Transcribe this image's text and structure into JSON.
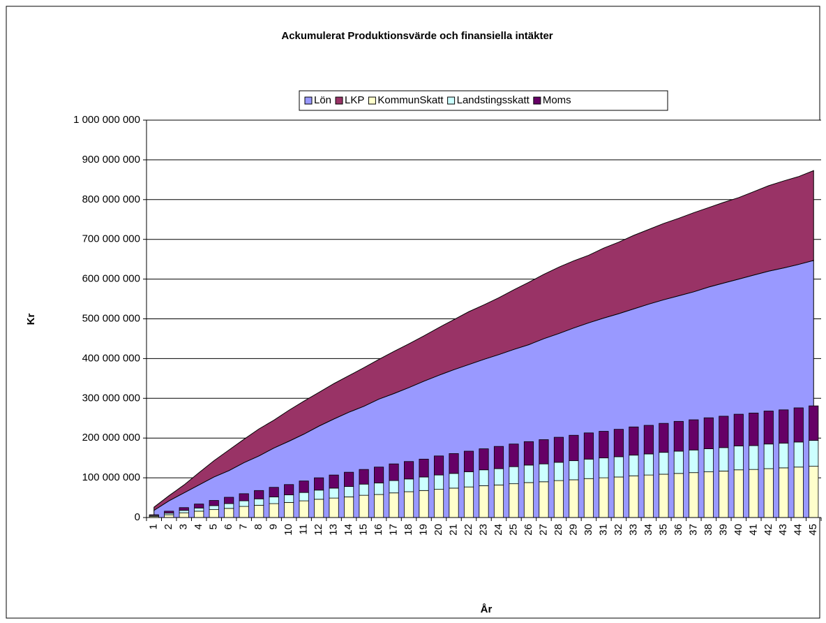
{
  "chart_data": {
    "type": "combo",
    "title": "Ackumulerat Produktionsvärde och finansiella intäkter",
    "y_label": "Kr",
    "x_label": "År",
    "categories": [
      "1",
      "2",
      "3",
      "4",
      "5",
      "6",
      "7",
      "8",
      "9",
      "10",
      "11",
      "12",
      "13",
      "14",
      "15",
      "16",
      "17",
      "18",
      "19",
      "20",
      "21",
      "22",
      "23",
      "24",
      "25",
      "26",
      "27",
      "28",
      "29",
      "30",
      "31",
      "32",
      "33",
      "34",
      "35",
      "36",
      "37",
      "38",
      "39",
      "40",
      "41",
      "42",
      "43",
      "44",
      "45"
    ],
    "ylim": [
      0,
      1000000000
    ],
    "yticks": [
      {
        "value": 0,
        "label": "0"
      },
      {
        "value": 100000000,
        "label": "100 000 000"
      },
      {
        "value": 200000000,
        "label": "200 000 000"
      },
      {
        "value": 300000000,
        "label": "300 000 000"
      },
      {
        "value": 400000000,
        "label": "400 000 000"
      },
      {
        "value": 500000000,
        "label": "500 000 000"
      },
      {
        "value": 600000000,
        "label": "600 000 000"
      },
      {
        "value": 700000000,
        "label": "700 000 000"
      },
      {
        "value": 800000000,
        "label": "800 000 000"
      },
      {
        "value": 900000000,
        "label": "900 000 000"
      },
      {
        "value": 1000000000,
        "label": "1 000 000 000"
      }
    ],
    "grid": true,
    "legend": "top",
    "series": [
      {
        "name": "Lön",
        "color": "#9999ff",
        "type": "area",
        "values": [
          18000000,
          42000000,
          62000000,
          82000000,
          102000000,
          118000000,
          138000000,
          155000000,
          175000000,
          192000000,
          210000000,
          230000000,
          248000000,
          265000000,
          280000000,
          298000000,
          312000000,
          327000000,
          343000000,
          358000000,
          372000000,
          385000000,
          398000000,
          410000000,
          423000000,
          435000000,
          450000000,
          463000000,
          477000000,
          490000000,
          502000000,
          513000000,
          525000000,
          537000000,
          548000000,
          558000000,
          568000000,
          580000000,
          590000000,
          600000000,
          610000000,
          620000000,
          628000000,
          637000000,
          647000000
        ]
      },
      {
        "name": "LKP",
        "color": "#993366",
        "type": "area",
        "values": [
          8000000,
          13000000,
          20000000,
          31000000,
          41000000,
          52000000,
          59000000,
          68000000,
          70000000,
          78000000,
          83000000,
          85000000,
          89000000,
          92000000,
          97000000,
          100000000,
          106000000,
          110000000,
          114000000,
          120000000,
          126000000,
          133000000,
          137000000,
          143000000,
          150000000,
          157000000,
          162000000,
          167000000,
          169000000,
          170000000,
          176000000,
          180000000,
          185000000,
          188000000,
          192000000,
          195000000,
          199000000,
          200000000,
          203000000,
          205000000,
          210000000,
          215000000,
          219000000,
          221000000,
          226000000
        ]
      },
      {
        "name": "KommunSkatt",
        "color": "#ffffcc",
        "type": "bar",
        "values": [
          3000000,
          7000000,
          12000000,
          16000000,
          20000000,
          23000000,
          28000000,
          31000000,
          35000000,
          38000000,
          42000000,
          46000000,
          49000000,
          52000000,
          56000000,
          58000000,
          62000000,
          65000000,
          68000000,
          71000000,
          74000000,
          77000000,
          80000000,
          82000000,
          85000000,
          88000000,
          90000000,
          93000000,
          95000000,
          98000000,
          100000000,
          102000000,
          105000000,
          107000000,
          109000000,
          111000000,
          113000000,
          115000000,
          117000000,
          120000000,
          121000000,
          123000000,
          125000000,
          127000000,
          129000000
        ]
      },
      {
        "name": "Landstingsskatt",
        "color": "#ccffff",
        "type": "bar",
        "values": [
          2000000,
          4000000,
          6000000,
          8000000,
          10000000,
          12000000,
          14000000,
          16000000,
          17000000,
          19000000,
          21000000,
          23000000,
          25000000,
          26000000,
          28000000,
          29000000,
          31000000,
          32000000,
          34000000,
          36000000,
          37000000,
          38000000,
          40000000,
          41000000,
          43000000,
          44000000,
          45000000,
          46000000,
          48000000,
          49000000,
          50000000,
          51000000,
          52000000,
          53000000,
          55000000,
          56000000,
          57000000,
          58000000,
          59000000,
          60000000,
          60000000,
          62000000,
          62000000,
          63000000,
          65000000
        ]
      },
      {
        "name": "Moms",
        "color": "#660066",
        "type": "bar",
        "values": [
          2000000,
          5000000,
          7000000,
          10000000,
          13000000,
          16000000,
          18000000,
          21000000,
          24000000,
          26000000,
          29000000,
          31000000,
          33000000,
          36000000,
          37000000,
          40000000,
          42000000,
          44000000,
          45000000,
          48000000,
          50000000,
          52000000,
          53000000,
          56000000,
          57000000,
          59000000,
          61000000,
          63000000,
          64000000,
          66000000,
          67000000,
          69000000,
          71000000,
          72000000,
          73000000,
          75000000,
          76000000,
          78000000,
          79000000,
          80000000,
          82000000,
          83000000,
          84000000,
          86000000,
          87000000
        ]
      }
    ]
  }
}
